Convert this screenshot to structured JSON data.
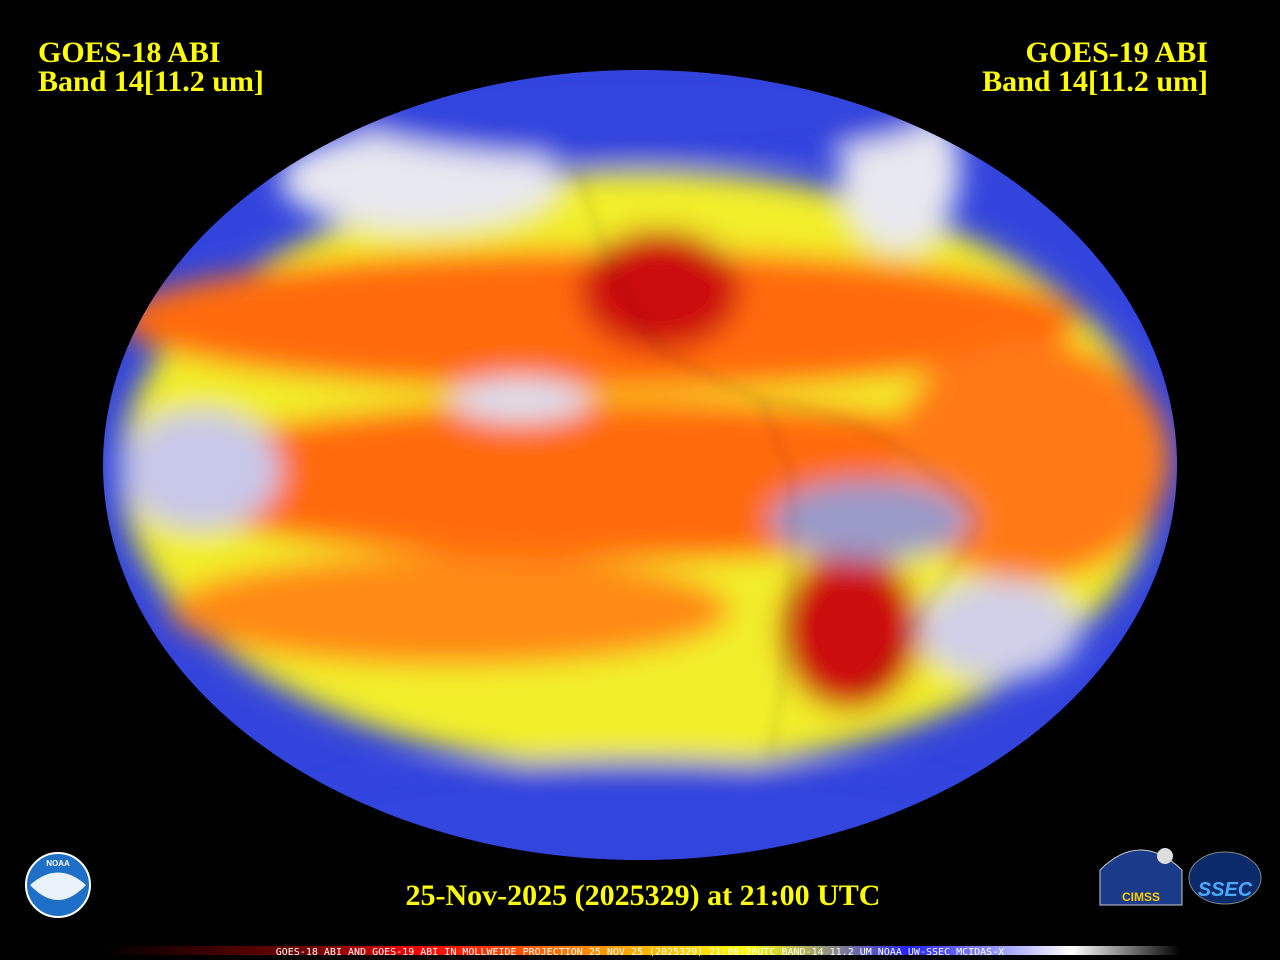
{
  "left_label": {
    "line1": "GOES-18 ABI",
    "line2": "Band 14[11.2 um]"
  },
  "right_label": {
    "line1": "GOES-19 ABI",
    "line2": "Band 14[11.2 um]"
  },
  "timestamp": "25-Nov-2025 (2025329) at 21:00 UTC",
  "footer": "GOES-18 ABI AND GOES-19 ABI IN MOLLWEIDE PROJECTION 25 NOV 25 (2025329) 21:00:20UTC BAND-14 11.2 UM NOAA UW-SSEC MCIDAS-X",
  "logos": {
    "noaa": "NOAA",
    "cimss": "CIMSS",
    "ssec": "SSEC"
  }
}
